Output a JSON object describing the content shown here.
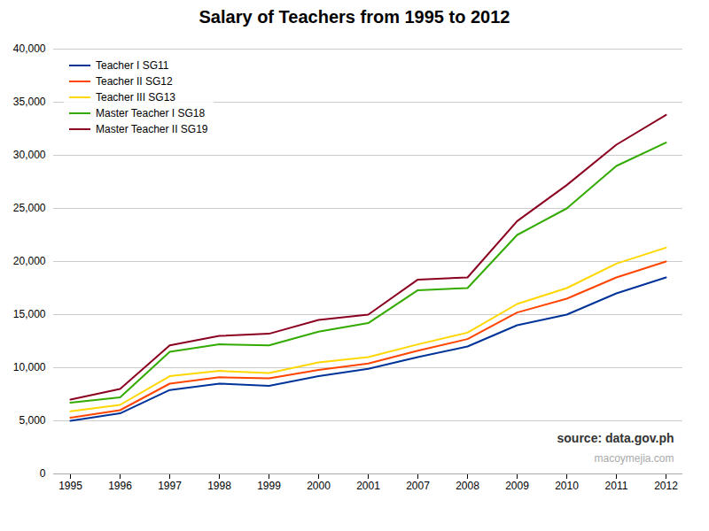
{
  "chart_data": {
    "type": "line",
    "title": "Salary of Teachers from 1995 to 2012",
    "annotations": [
      "source: data.gov.ph",
      "macoymejia.com"
    ],
    "categories": [
      "1995",
      "1996",
      "1997",
      "1998",
      "1999",
      "2000",
      "2001",
      "2007",
      "2008",
      "2009",
      "2010",
      "2011",
      "2012"
    ],
    "series": [
      {
        "name": "Teacher I SG11",
        "color": "#003399",
        "values": [
          5000,
          5700,
          7900,
          8500,
          8300,
          9200,
          9900,
          11000,
          12000,
          14000,
          15000,
          17000,
          18500
        ]
      },
      {
        "name": "Teacher II SG12",
        "color": "#FF4500",
        "values": [
          5300,
          6000,
          8500,
          9100,
          9000,
          9800,
          10400,
          11600,
          12700,
          15200,
          16500,
          18500,
          20000
        ]
      },
      {
        "name": "Teacher III SG13",
        "color": "#FFD700",
        "values": [
          5900,
          6500,
          9200,
          9700,
          9500,
          10500,
          11000,
          12200,
          13300,
          16000,
          17500,
          19800,
          21300
        ]
      },
      {
        "name": "Master Teacher I SG18",
        "color": "#33AA00",
        "values": [
          6700,
          7200,
          11500,
          12200,
          12100,
          13400,
          14200,
          17300,
          17500,
          22500,
          25000,
          29000,
          31200
        ]
      },
      {
        "name": "Master Teacher II SG19",
        "color": "#8B0020",
        "values": [
          7000,
          8000,
          12100,
          13000,
          13200,
          14500,
          15000,
          18300,
          18500,
          23800,
          27200,
          31000,
          33800
        ]
      }
    ],
    "ylim": [
      0,
      40000
    ],
    "yticks": [
      0,
      {
        "value": 5000,
        "label": "5,000"
      },
      {
        "value": 10000,
        "label": "10,000"
      },
      {
        "value": 15000,
        "label": "15,000"
      },
      {
        "value": 20000,
        "label": "20,000"
      },
      {
        "value": 25000,
        "label": "25,000"
      },
      {
        "value": 30000,
        "label": "30,000"
      },
      {
        "value": 35000,
        "label": "35,000"
      },
      {
        "value": 40000,
        "label": "40,000"
      }
    ],
    "grid": true,
    "legend": "upper left"
  }
}
